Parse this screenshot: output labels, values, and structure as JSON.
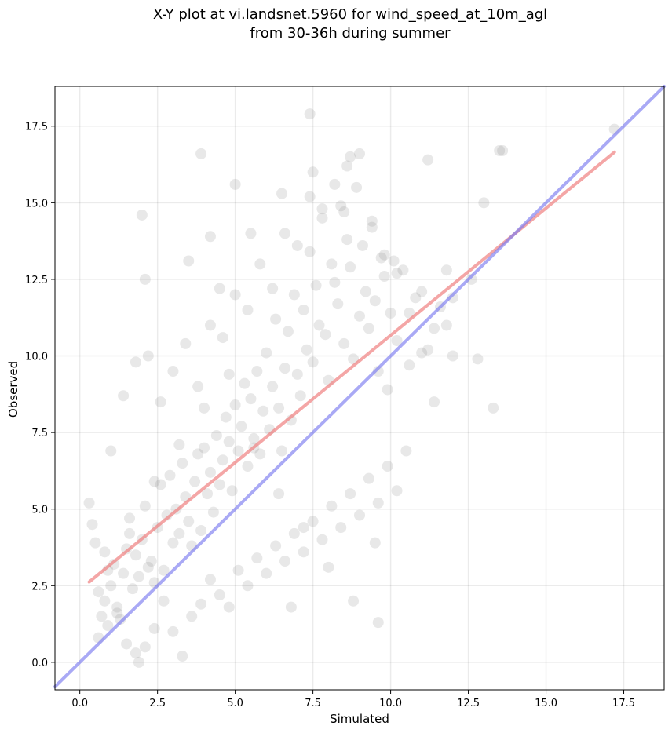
{
  "chart_data": {
    "type": "scatter",
    "title_lines": [
      "X-Y plot at vi.landsnet.5960 for wind_speed_at_10m_agl",
      "from 30-36h during summer"
    ],
    "xlabel": "Simulated",
    "ylabel": "Observed",
    "xlim": [
      -0.8,
      18.8
    ],
    "ylim": [
      -0.9,
      18.8
    ],
    "xticks": [
      0.0,
      2.5,
      5.0,
      7.5,
      10.0,
      12.5,
      15.0,
      17.5
    ],
    "yticks": [
      0.0,
      2.5,
      5.0,
      7.5,
      10.0,
      12.5,
      15.0,
      17.5
    ],
    "tick_labels_x": [
      "0.0",
      "2.5",
      "5.0",
      "7.5",
      "10.0",
      "12.5",
      "15.0",
      "17.5"
    ],
    "tick_labels_y": [
      "0.0",
      "2.5",
      "5.0",
      "7.5",
      "10.0",
      "12.5",
      "15.0",
      "17.5"
    ],
    "grid": true,
    "point_color": "#808080",
    "point_opacity": 0.18,
    "series": [
      {
        "kind": "points",
        "x": [
          0.3,
          0.4,
          0.5,
          0.6,
          0.7,
          0.8,
          0.9,
          1.0,
          1.1,
          1.2,
          1.3,
          1.4,
          1.5,
          1.6,
          1.7,
          1.8,
          1.9,
          2.0,
          2.1,
          2.2,
          2.3,
          2.4,
          2.5,
          2.6,
          2.7,
          2.8,
          2.9,
          3.0,
          3.1,
          3.2,
          3.3,
          3.4,
          3.5,
          3.6,
          3.7,
          3.8,
          3.9,
          4.0,
          4.1,
          4.2,
          4.3,
          4.4,
          4.5,
          4.6,
          4.7,
          4.8,
          4.9,
          5.0,
          5.1,
          5.2,
          5.3,
          5.4,
          5.5,
          5.6,
          5.7,
          5.8,
          5.9,
          6.0,
          6.1,
          6.2,
          6.3,
          6.4,
          6.5,
          6.6,
          6.7,
          6.8,
          6.9,
          7.0,
          7.1,
          7.2,
          7.3,
          7.4,
          7.5,
          7.6,
          7.7,
          7.8,
          7.9,
          8.0,
          8.1,
          8.2,
          8.3,
          8.4,
          8.5,
          8.6,
          8.7,
          8.8,
          8.9,
          9.0,
          9.1,
          9.2,
          9.3,
          9.4,
          9.5,
          9.6,
          9.7,
          9.8,
          9.9,
          10.0,
          10.2,
          10.4,
          10.6,
          10.8,
          11.0,
          11.2,
          11.4,
          11.6,
          11.8,
          12.0,
          12.6,
          12.8,
          13.0,
          13.3,
          13.5,
          17.2,
          0.6,
          0.9,
          1.2,
          1.5,
          1.8,
          2.1,
          2.4,
          2.7,
          3.0,
          3.3,
          3.6,
          3.9,
          4.2,
          4.5,
          4.8,
          5.1,
          5.4,
          5.7,
          6.0,
          6.3,
          6.6,
          6.9,
          7.2,
          7.5,
          7.8,
          8.1,
          8.4,
          8.7,
          9.0,
          9.3,
          9.6,
          9.9,
          10.2,
          10.5,
          1.0,
          1.4,
          1.8,
          2.2,
          2.6,
          3.0,
          3.4,
          3.8,
          4.2,
          4.6,
          5.0,
          5.4,
          5.8,
          6.2,
          6.6,
          7.0,
          7.4,
          7.8,
          8.2,
          8.6,
          9.0,
          9.4,
          9.8,
          10.2,
          10.6,
          11.0,
          11.4,
          11.8,
          0.8,
          1.6,
          2.4,
          3.2,
          4.0,
          4.8,
          5.6,
          6.4,
          7.2,
          8.0,
          8.8,
          9.6,
          2.0,
          3.5,
          4.5,
          5.5,
          6.5,
          7.5,
          8.5,
          3.9,
          2.1,
          1.9,
          7.4,
          5.0,
          8.7,
          13.6,
          11.2,
          12.0,
          10.1,
          9.5,
          6.8,
          4.2
        ],
        "y": [
          5.2,
          4.5,
          3.9,
          2.3,
          1.5,
          2.0,
          3.0,
          2.5,
          3.2,
          1.8,
          1.4,
          2.9,
          3.7,
          4.2,
          2.4,
          3.5,
          2.8,
          4.0,
          5.1,
          3.1,
          3.3,
          2.6,
          4.4,
          5.8,
          3.0,
          4.8,
          6.1,
          3.9,
          5.0,
          4.2,
          6.5,
          5.4,
          4.6,
          3.8,
          5.9,
          6.8,
          4.3,
          7.0,
          5.5,
          6.2,
          4.9,
          7.4,
          5.8,
          6.6,
          8.0,
          7.2,
          5.6,
          8.4,
          6.9,
          7.7,
          9.1,
          6.4,
          8.6,
          7.3,
          9.5,
          6.8,
          8.2,
          10.1,
          7.6,
          9.0,
          11.2,
          8.3,
          6.9,
          9.6,
          10.8,
          7.9,
          12.0,
          9.4,
          8.7,
          11.5,
          10.2,
          13.4,
          9.8,
          12.3,
          11.0,
          14.5,
          10.7,
          9.2,
          13.0,
          12.4,
          11.7,
          14.9,
          10.4,
          13.8,
          12.9,
          9.9,
          15.5,
          11.3,
          13.6,
          12.1,
          10.9,
          14.2,
          11.8,
          9.5,
          13.2,
          12.6,
          8.9,
          11.4,
          10.5,
          12.8,
          9.7,
          11.9,
          12.1,
          10.2,
          10.9,
          11.6,
          12.8,
          10.0,
          12.5,
          9.9,
          15.0,
          8.3,
          16.7,
          17.4,
          0.8,
          1.2,
          1.6,
          0.6,
          0.3,
          0.5,
          1.1,
          2.0,
          1.0,
          0.2,
          1.5,
          1.9,
          2.7,
          2.2,
          1.8,
          3.0,
          2.5,
          3.4,
          2.9,
          3.8,
          3.3,
          4.2,
          3.6,
          4.6,
          4.0,
          5.1,
          4.4,
          5.5,
          4.8,
          6.0,
          5.2,
          6.4,
          5.6,
          6.9,
          6.9,
          8.7,
          9.8,
          10.0,
          8.5,
          9.5,
          10.4,
          9.0,
          11.0,
          10.6,
          12.0,
          11.5,
          13.0,
          12.2,
          14.0,
          13.6,
          15.2,
          14.8,
          15.6,
          16.2,
          16.6,
          14.4,
          13.3,
          12.7,
          11.4,
          10.1,
          8.5,
          11.0,
          3.6,
          4.7,
          5.9,
          7.1,
          8.3,
          9.4,
          7.0,
          5.5,
          4.4,
          3.1,
          2.0,
          1.3,
          14.6,
          13.1,
          12.2,
          14.0,
          15.3,
          16.0,
          14.7,
          16.6,
          12.5,
          0.0,
          17.9,
          15.6,
          16.5,
          16.7,
          16.4,
          11.9,
          13.1,
          3.9,
          1.8,
          13.9
        ]
      },
      {
        "kind": "line",
        "name": "regression",
        "color": "#f08080",
        "opacity": 0.7,
        "x": [
          0.3,
          17.2
        ],
        "y": [
          2.62,
          16.65
        ]
      },
      {
        "kind": "line",
        "name": "one-to-one",
        "color": "#7b7bf0",
        "opacity": 0.65,
        "x": [
          -0.8,
          18.8
        ],
        "y": [
          -0.8,
          18.8
        ]
      }
    ]
  }
}
